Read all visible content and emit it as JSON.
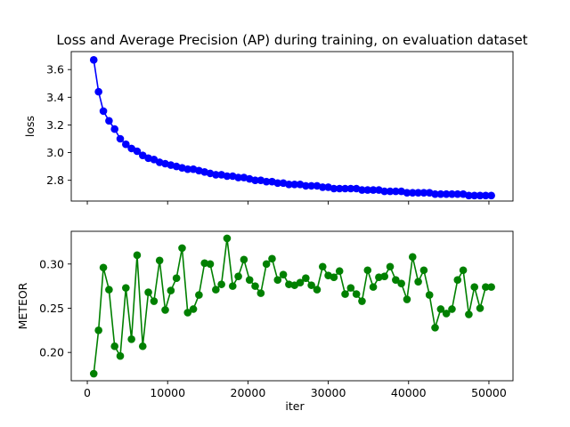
{
  "chart_data": {
    "type": "line",
    "title": "Loss and Average Precision (AP) during training, on evaluation dataset",
    "x": [
      800,
      1400,
      2000,
      2700,
      3400,
      4100,
      4800,
      5500,
      6200,
      6900,
      7600,
      8300,
      9000,
      9700,
      10400,
      11100,
      11800,
      12500,
      13200,
      13900,
      14600,
      15300,
      16000,
      16700,
      17400,
      18100,
      18800,
      19500,
      20200,
      20900,
      21600,
      22300,
      23000,
      23700,
      24400,
      25100,
      25800,
      26500,
      27200,
      27900,
      28600,
      29300,
      30000,
      30700,
      31400,
      32100,
      32800,
      33500,
      34200,
      34900,
      35600,
      36300,
      37000,
      37700,
      38400,
      39100,
      39800,
      40500,
      41200,
      41900,
      42600,
      43300,
      44000,
      44700,
      45400,
      46100,
      46800,
      47500,
      48200,
      48900,
      49600,
      50300
    ],
    "xlabel": "iter",
    "xticks": [
      0,
      10000,
      20000,
      30000,
      40000,
      50000
    ],
    "xlim": [
      -2000,
      53000
    ],
    "grid": false,
    "subplots": [
      {
        "ylabel": "loss",
        "color": "#0000ff",
        "ylim": [
          2.65,
          3.73
        ],
        "yticks": [
          "2.8",
          "3.0",
          "3.2",
          "3.4",
          "3.6"
        ],
        "values": [
          3.67,
          3.44,
          3.3,
          3.23,
          3.17,
          3.1,
          3.06,
          3.03,
          3.01,
          2.98,
          2.96,
          2.95,
          2.93,
          2.92,
          2.91,
          2.9,
          2.89,
          2.88,
          2.88,
          2.87,
          2.86,
          2.85,
          2.84,
          2.84,
          2.83,
          2.83,
          2.82,
          2.82,
          2.81,
          2.8,
          2.8,
          2.79,
          2.79,
          2.78,
          2.78,
          2.77,
          2.77,
          2.77,
          2.76,
          2.76,
          2.76,
          2.75,
          2.75,
          2.74,
          2.74,
          2.74,
          2.74,
          2.74,
          2.73,
          2.73,
          2.73,
          2.73,
          2.72,
          2.72,
          2.72,
          2.72,
          2.71,
          2.71,
          2.71,
          2.71,
          2.71,
          2.7,
          2.7,
          2.7,
          2.7,
          2.7,
          2.7,
          2.69,
          2.69,
          2.69,
          2.69,
          2.69
        ]
      },
      {
        "ylabel": "METEOR",
        "color": "#008000",
        "ylim": [
          0.168,
          0.337
        ],
        "yticks": [
          "0.20",
          "0.25",
          "0.30"
        ],
        "values": [
          0.176,
          0.225,
          0.296,
          0.271,
          0.207,
          0.196,
          0.273,
          0.215,
          0.31,
          0.207,
          0.268,
          0.258,
          0.304,
          0.248,
          0.27,
          0.284,
          0.318,
          0.245,
          0.249,
          0.265,
          0.301,
          0.3,
          0.271,
          0.277,
          0.329,
          0.275,
          0.286,
          0.305,
          0.282,
          0.275,
          0.267,
          0.3,
          0.306,
          0.282,
          0.288,
          0.277,
          0.276,
          0.279,
          0.284,
          0.276,
          0.271,
          0.297,
          0.287,
          0.285,
          0.292,
          0.266,
          0.273,
          0.266,
          0.258,
          0.293,
          0.274,
          0.285,
          0.286,
          0.297,
          0.282,
          0.278,
          0.26,
          0.308,
          0.28,
          0.293,
          0.265,
          0.228,
          0.249,
          0.244,
          0.249,
          0.282,
          0.293,
          0.243,
          0.274,
          0.25,
          0.274,
          0.274
        ]
      }
    ]
  }
}
